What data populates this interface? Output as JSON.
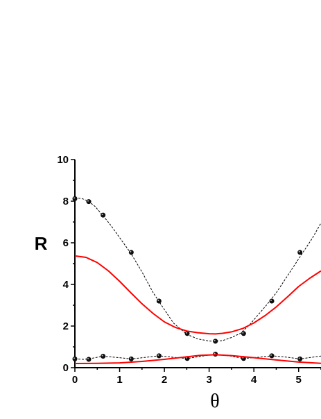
{
  "chart_data": {
    "type": "line",
    "xlabel": "θ",
    "ylabel": "R",
    "xlim": [
      0,
      5.5
    ],
    "ylim": [
      0,
      10
    ],
    "x_ticks": [
      "0",
      "1",
      "2",
      "3",
      "4",
      "5"
    ],
    "y_ticks": [
      "0",
      "2",
      "4",
      "6",
      "8",
      "10"
    ],
    "grid": false,
    "legend": "none",
    "colors": {
      "model": "#ff0000",
      "points": "#000000",
      "dashed": "#000000"
    },
    "series": [
      {
        "style": "dashed-line-with-points",
        "color": "#000000",
        "curve": [
          [
            0.0,
            8.15
          ],
          [
            0.15,
            8.13
          ],
          [
            0.3,
            8.0
          ],
          [
            0.45,
            7.75
          ],
          [
            0.6,
            7.38
          ],
          [
            0.8,
            6.85
          ],
          [
            1.0,
            6.25
          ],
          [
            1.25,
            5.5
          ],
          [
            1.5,
            4.6
          ],
          [
            1.75,
            3.6
          ],
          [
            1.95,
            2.95
          ],
          [
            2.2,
            2.15
          ],
          [
            2.5,
            1.6
          ],
          [
            2.75,
            1.38
          ],
          [
            3.0,
            1.28
          ],
          [
            3.14,
            1.27
          ],
          [
            3.3,
            1.3
          ],
          [
            3.5,
            1.45
          ],
          [
            3.7,
            1.65
          ],
          [
            3.9,
            2.05
          ],
          [
            4.1,
            2.55
          ],
          [
            4.3,
            3.05
          ],
          [
            4.5,
            3.6
          ],
          [
            4.7,
            4.25
          ],
          [
            4.9,
            4.9
          ],
          [
            5.1,
            5.55
          ],
          [
            5.3,
            6.2
          ],
          [
            5.5,
            6.95
          ]
        ],
        "points": [
          [
            0.0,
            8.12
          ],
          [
            0.31,
            7.98
          ],
          [
            0.63,
            7.33
          ],
          [
            1.26,
            5.54
          ],
          [
            1.88,
            3.2
          ],
          [
            2.51,
            1.64
          ],
          [
            3.14,
            1.27
          ],
          [
            3.77,
            1.64
          ],
          [
            4.4,
            3.2
          ],
          [
            5.03,
            5.54
          ]
        ]
      },
      {
        "style": "dashed-line-with-points",
        "color": "#000000",
        "curve": [
          [
            0.0,
            0.42
          ],
          [
            0.2,
            0.4
          ],
          [
            0.4,
            0.46
          ],
          [
            0.63,
            0.55
          ],
          [
            0.9,
            0.5
          ],
          [
            1.26,
            0.42
          ],
          [
            1.6,
            0.5
          ],
          [
            1.88,
            0.57
          ],
          [
            2.2,
            0.5
          ],
          [
            2.51,
            0.44
          ],
          [
            2.8,
            0.54
          ],
          [
            3.14,
            0.65
          ],
          [
            3.5,
            0.55
          ],
          [
            3.77,
            0.44
          ],
          [
            4.1,
            0.5
          ],
          [
            4.4,
            0.57
          ],
          [
            4.75,
            0.5
          ],
          [
            5.03,
            0.42
          ],
          [
            5.3,
            0.5
          ],
          [
            5.5,
            0.56
          ]
        ],
        "points": [
          [
            0.0,
            0.42
          ],
          [
            0.31,
            0.4
          ],
          [
            0.63,
            0.55
          ],
          [
            1.26,
            0.42
          ],
          [
            1.88,
            0.57
          ],
          [
            2.51,
            0.44
          ],
          [
            3.14,
            0.65
          ],
          [
            3.77,
            0.44
          ],
          [
            4.4,
            0.57
          ],
          [
            5.03,
            0.42
          ]
        ]
      },
      {
        "style": "solid",
        "color": "#ff0000",
        "curve": [
          [
            0.0,
            5.37
          ],
          [
            0.25,
            5.3
          ],
          [
            0.5,
            5.05
          ],
          [
            0.75,
            4.65
          ],
          [
            1.0,
            4.15
          ],
          [
            1.25,
            3.6
          ],
          [
            1.5,
            3.07
          ],
          [
            1.75,
            2.6
          ],
          [
            2.0,
            2.2
          ],
          [
            2.25,
            1.93
          ],
          [
            2.5,
            1.76
          ],
          [
            2.75,
            1.68
          ],
          [
            3.0,
            1.63
          ],
          [
            3.14,
            1.62
          ],
          [
            3.3,
            1.65
          ],
          [
            3.5,
            1.72
          ],
          [
            3.75,
            1.88
          ],
          [
            4.0,
            2.15
          ],
          [
            4.25,
            2.5
          ],
          [
            4.5,
            2.92
          ],
          [
            4.75,
            3.4
          ],
          [
            5.0,
            3.9
          ],
          [
            5.25,
            4.3
          ],
          [
            5.5,
            4.65
          ]
        ]
      },
      {
        "style": "solid",
        "color": "#ff0000",
        "curve": [
          [
            0.0,
            0.2
          ],
          [
            0.5,
            0.21
          ],
          [
            1.0,
            0.23
          ],
          [
            1.5,
            0.3
          ],
          [
            2.0,
            0.4
          ],
          [
            2.5,
            0.52
          ],
          [
            2.8,
            0.59
          ],
          [
            3.14,
            0.62
          ],
          [
            3.5,
            0.58
          ],
          [
            4.0,
            0.48
          ],
          [
            4.5,
            0.37
          ],
          [
            5.0,
            0.27
          ],
          [
            5.5,
            0.21
          ]
        ]
      }
    ]
  }
}
